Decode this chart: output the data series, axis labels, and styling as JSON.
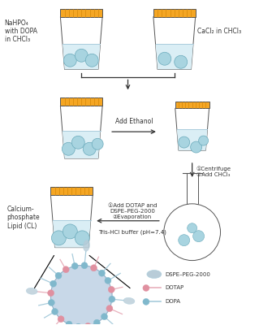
{
  "bg_color": "#ffffff",
  "tube_cap_color": "#F5A623",
  "tube_cap_stripe": "#d4880a",
  "tube_body_color": "#ffffff",
  "tube_border_color": "#555555",
  "liquid_color": "#daeef5",
  "liquid_border": "#aaccdd",
  "bubble_color": "#a8d4e0",
  "bubble_edge": "#6aaabb",
  "arrow_color": "#333333",
  "text_color": "#333333",
  "label_nahpo4": "NaHPO₄\nwith DOPA\nin CHCl₃",
  "label_cacl2": "CaCl₂ in CHCl₃",
  "label_ethanol": "Add Ethanol",
  "label_step2": "①Centrifuge\n②Add CHCl₃",
  "label_step3": "①Add DOTAP and\nDSPE–PEG-2000\n②Evaporation",
  "label_buffer": "Tris-HCl buffer (pH=7.4)",
  "label_cl": "Calcium-\nphosphate\nLipid (CL)",
  "legend_dspe": "DSPE–PEG-2000",
  "legend_dotap": "DOTAP",
  "legend_dopa": "DOPA",
  "sphere_color": "#c8d8e8",
  "sphere_edge": "#90b0c8",
  "lipid_head_blue": "#80b8cc",
  "lipid_head_pink": "#e090a0",
  "lipid_tail_blue": "#a8ccdc",
  "lipid_tail_pink": "#e8b0bc",
  "peg_color": "#b8ccd8"
}
